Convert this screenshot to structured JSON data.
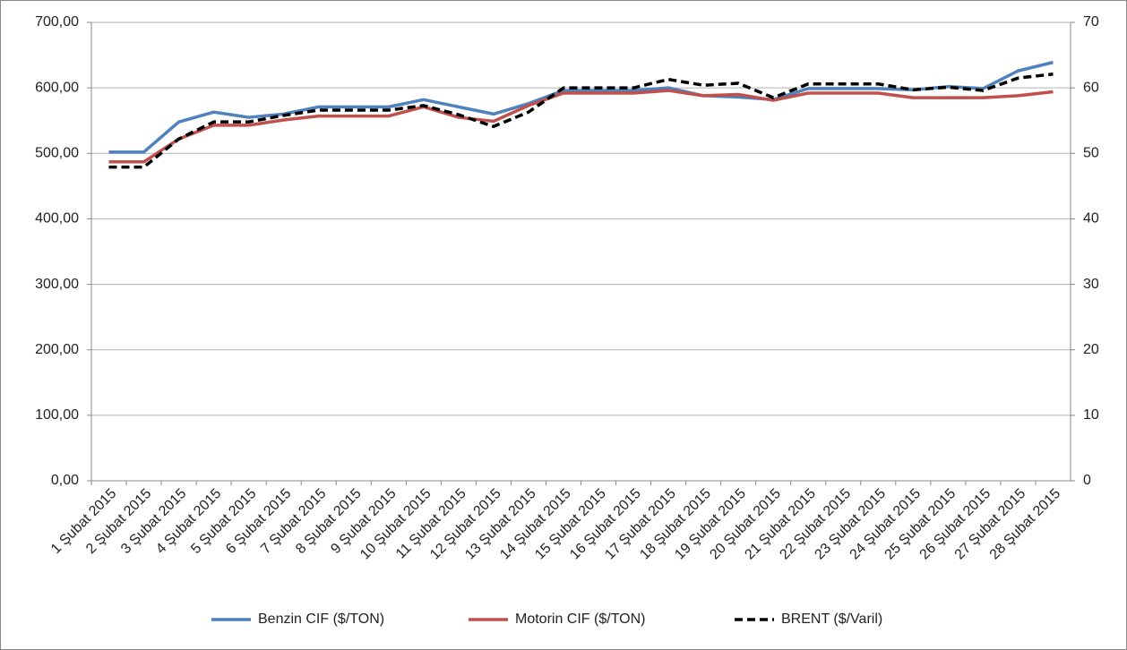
{
  "chart_data": {
    "type": "line",
    "categories": [
      "1 Şubat 2015",
      "2 Şubat 2015",
      "3 Şubat 2015",
      "4 Şubat 2015",
      "5 Şubat 2015",
      "6 Şubat 2015",
      "7 Şubat 2015",
      "8 Şubat 2015",
      "9 Şubat 2015",
      "10 Şubat 2015",
      "11 Şubat 2015",
      "12 Şubat 2015",
      "13 Şubat 2015",
      "14 Şubat 2015",
      "15 Şubat 2015",
      "16 Şubat 2015",
      "17 Şubat 2015",
      "18 Şubat 2015",
      "19 Şubat 2015",
      "20 Şubat 2015",
      "21 Şubat 2015",
      "22 Şubat 2015",
      "23 Şubat 2015",
      "24 Şubat 2015",
      "25 Şubat 2015",
      "26 Şubat 2015",
      "27 Şubat 2015",
      "28 Şubat 2015"
    ],
    "series": [
      {
        "name": "Benzin CIF ($/TON)",
        "color": "#4f81bd",
        "values": [
          502,
          502,
          548,
          563,
          555,
          560,
          571,
          571,
          571,
          582,
          571,
          560,
          576,
          596,
          596,
          596,
          600,
          588,
          586,
          582,
          599,
          599,
          599,
          597,
          602,
          599,
          626,
          639
        ]
      },
      {
        "name": "Motorin CIF ($/TON)",
        "color": "#c0504d",
        "values": [
          487,
          487,
          522,
          543,
          543,
          551,
          557,
          557,
          557,
          571,
          555,
          549,
          573,
          592,
          592,
          592,
          596,
          588,
          590,
          581,
          592,
          592,
          592,
          585,
          585,
          585,
          588,
          594
        ]
      },
      {
        "name": "BRENT ($/Varil)",
        "color": "#000000",
        "dashed": true,
        "axis": "y2",
        "values": [
          47.9,
          47.9,
          52.2,
          54.8,
          54.8,
          55.8,
          56.6,
          56.6,
          56.6,
          57.3,
          55.9,
          54.1,
          56.3,
          60.0,
          60.0,
          60.0,
          61.3,
          60.4,
          60.7,
          58.5,
          60.6,
          60.6,
          60.6,
          59.7,
          60.1,
          59.6,
          61.5,
          62.1
        ]
      }
    ],
    "ylim": [
      0,
      700
    ],
    "yticks": [
      {
        "value": 0,
        "label": "0,00"
      },
      {
        "value": 100,
        "label": "100,00"
      },
      {
        "value": 200,
        "label": "200,00"
      },
      {
        "value": 300,
        "label": "300,00"
      },
      {
        "value": 400,
        "label": "400,00"
      },
      {
        "value": 500,
        "label": "500,00"
      },
      {
        "value": 600,
        "label": "600,00"
      },
      {
        "value": 700,
        "label": "700,00"
      }
    ],
    "y2lim": [
      0,
      70
    ],
    "y2ticks": [
      0,
      10,
      20,
      30,
      40,
      50,
      60,
      70
    ],
    "grid": true,
    "legend": "bottom"
  }
}
